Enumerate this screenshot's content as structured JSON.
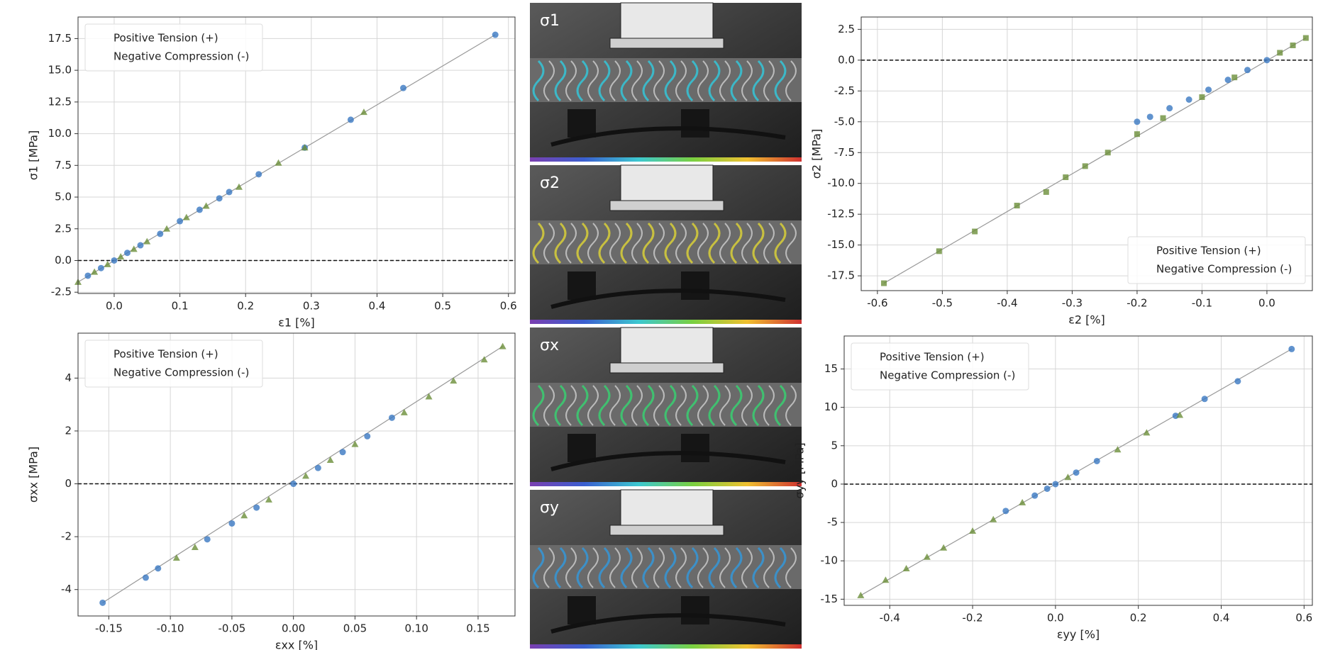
{
  "chart_data": [
    {
      "type": "scatter",
      "xlabel": "ε1 [%]",
      "ylabel": "σ1 [MPa]",
      "grid": true,
      "legend": "upper left",
      "reference_line": 0,
      "xlim": [
        -0.055,
        0.61
      ],
      "ylim": [
        -2.6,
        19.2
      ],
      "xticks": [
        {
          "value": 0,
          "label": "0.0"
        },
        0.1,
        0.2,
        0.3,
        0.4,
        0.5,
        0.6
      ],
      "yticks": [
        -2.5,
        {
          "value": 0,
          "label": "0.0"
        },
        2.5,
        {
          "value": 5,
          "label": "5.0"
        },
        7.5,
        {
          "value": 10,
          "label": "10.0"
        },
        12.5,
        {
          "value": 15,
          "label": "15.0"
        },
        17.5
      ],
      "series": [
        {
          "name": "Positive Tension (+)",
          "color": "#3a78c2",
          "marker": "o",
          "x": [
            -0.04,
            -0.02,
            0.0,
            0.02,
            0.04,
            0.07,
            0.1,
            0.13,
            0.16,
            0.175,
            0.22,
            0.29,
            0.36,
            0.44,
            0.58
          ],
          "values": [
            -1.2,
            -0.6,
            0.0,
            0.6,
            1.2,
            2.1,
            3.1,
            4.0,
            4.9,
            5.4,
            6.8,
            8.9,
            11.1,
            13.6,
            17.8
          ]
        },
        {
          "name": "Negative Compression (-)",
          "color": "#6b8e3a",
          "marker": "^",
          "x": [
            -0.055,
            -0.03,
            -0.01,
            0.01,
            0.03,
            0.05,
            0.08,
            0.11,
            0.14,
            0.19,
            0.25,
            0.29,
            0.38
          ],
          "values": [
            -1.7,
            -0.9,
            -0.3,
            0.3,
            0.9,
            1.5,
            2.5,
            3.4,
            4.3,
            5.8,
            7.7,
            8.9,
            11.7
          ]
        }
      ]
    },
    {
      "type": "scatter",
      "xlabel": "ε2 [%]",
      "ylabel": "σ2 [MPa]",
      "grid": true,
      "legend": "lower right",
      "reference_line": 0,
      "xlim": [
        -0.625,
        0.07
      ],
      "ylim": [
        -18.7,
        3.5
      ],
      "xticks": [
        -0.6,
        -0.5,
        -0.4,
        -0.3,
        -0.2,
        -0.1,
        {
          "value": 0,
          "label": "0.0"
        }
      ],
      "yticks": [
        2.5,
        {
          "value": 0,
          "label": "0.0"
        },
        -2.5,
        {
          "value": -5,
          "label": "-5.0"
        },
        -7.5,
        {
          "value": -10,
          "label": "-10.0"
        },
        -12.5,
        {
          "value": -15,
          "label": "-15.0"
        },
        -17.5
      ],
      "series": [
        {
          "name": "Positive Tension (+)",
          "color": "#3a78c2",
          "marker": "o",
          "x": [
            -0.2,
            -0.18,
            -0.15,
            -0.12,
            -0.09,
            -0.06,
            -0.03,
            0.0
          ],
          "values": [
            -5.0,
            -4.6,
            -3.9,
            -3.2,
            -2.4,
            -1.6,
            -0.8,
            0.0
          ]
        },
        {
          "name": "Negative Compression (-)",
          "color": "#6b8e3a",
          "marker": "s",
          "x": [
            -0.59,
            -0.505,
            -0.45,
            -0.385,
            -0.34,
            -0.31,
            -0.28,
            -0.245,
            -0.2,
            -0.16,
            -0.1,
            -0.05,
            0.02,
            0.04,
            0.06
          ],
          "values": [
            -18.1,
            -15.5,
            -13.9,
            -11.8,
            -10.7,
            -9.5,
            -8.6,
            -7.5,
            -6.0,
            -4.7,
            -3.0,
            -1.4,
            0.6,
            1.2,
            1.8
          ]
        }
      ]
    },
    {
      "type": "scatter",
      "xlabel": "εxx [%]",
      "ylabel": "σxx [MPa]",
      "grid": true,
      "legend": "upper left",
      "reference_line": 0,
      "xlim": [
        -0.175,
        0.18
      ],
      "ylim": [
        -5.0,
        5.7
      ],
      "xticks": [
        -0.15,
        {
          "value": -0.1,
          "label": "-0.10"
        },
        -0.05,
        {
          "value": 0,
          "label": "0.00"
        },
        0.05,
        {
          "value": 0.1,
          "label": "0.10"
        },
        0.15
      ],
      "yticks": [
        -4,
        -2,
        0,
        2,
        4
      ],
      "series": [
        {
          "name": "Positive Tension (+)",
          "color": "#3a78c2",
          "marker": "o",
          "x": [
            -0.155,
            -0.12,
            -0.11,
            -0.07,
            -0.05,
            -0.03,
            0.0,
            0.02,
            0.04,
            0.06,
            0.08
          ],
          "values": [
            -4.5,
            -3.55,
            -3.2,
            -2.1,
            -1.5,
            -0.9,
            0.0,
            0.6,
            1.2,
            1.8,
            2.5
          ]
        },
        {
          "name": "Negative Compression (-)",
          "color": "#6b8e3a",
          "marker": "^",
          "x": [
            -0.095,
            -0.08,
            -0.04,
            -0.02,
            0.01,
            0.03,
            0.05,
            0.09,
            0.11,
            0.13,
            0.155,
            0.17
          ],
          "values": [
            -2.8,
            -2.4,
            -1.2,
            -0.6,
            0.3,
            0.9,
            1.5,
            2.7,
            3.3,
            3.9,
            4.7,
            5.2
          ]
        }
      ]
    },
    {
      "type": "scatter",
      "xlabel": "εyy [%]",
      "ylabel": "σyy [MPa]",
      "grid": true,
      "legend": "upper left",
      "reference_line": 0,
      "xlim": [
        -0.51,
        0.62
      ],
      "ylim": [
        -15.8,
        19.3
      ],
      "xticks": [
        -0.4,
        -0.2,
        {
          "value": 0,
          "label": "0.0"
        },
        0.2,
        0.4,
        0.6
      ],
      "yticks": [
        -15,
        -10,
        -5,
        0,
        5,
        10,
        15
      ],
      "series": [
        {
          "name": "Positive Tension (+)",
          "color": "#3a78c2",
          "marker": "o",
          "x": [
            -0.12,
            -0.05,
            -0.02,
            0.0,
            0.05,
            0.1,
            0.29,
            0.36,
            0.44,
            0.57
          ],
          "values": [
            -3.5,
            -1.5,
            -0.6,
            0.0,
            1.5,
            3.0,
            8.9,
            11.1,
            13.4,
            17.6
          ]
        },
        {
          "name": "Negative Compression (-)",
          "color": "#6b8e3a",
          "marker": "^",
          "x": [
            -0.47,
            -0.41,
            -0.36,
            -0.31,
            -0.27,
            -0.2,
            -0.15,
            -0.08,
            0.03,
            0.15,
            0.22,
            0.3
          ],
          "values": [
            -14.5,
            -12.5,
            -11.0,
            -9.5,
            -8.3,
            -6.1,
            -4.6,
            -2.4,
            0.9,
            4.5,
            6.7,
            9.0
          ]
        }
      ]
    }
  ],
  "panels": [
    {
      "label": "σ1"
    },
    {
      "label": "σ2"
    },
    {
      "label": "σx"
    },
    {
      "label": "σy"
    }
  ]
}
